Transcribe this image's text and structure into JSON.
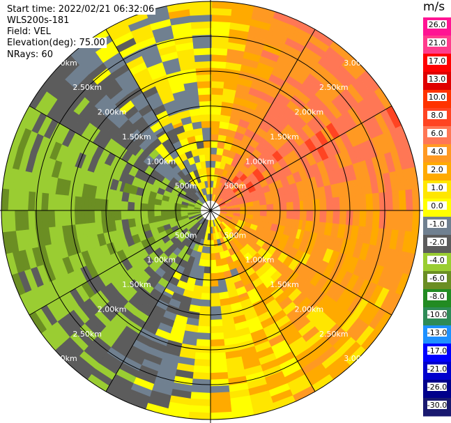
{
  "header": {
    "start_time": "Start time: 2022/02/21 06:32:06",
    "instrument": "WLS200s-181",
    "field": "Field: VEL",
    "elevation": "Elevation(deg): 75.00",
    "nrays": "NRays: 60"
  },
  "colorbar": {
    "unit": "m/s",
    "labels": [
      "26.0",
      "21.0",
      "17.0",
      "13.0",
      "10.0",
      "8.0",
      "6.0",
      "4.0",
      "2.0",
      "1.0",
      "0.0",
      "-1.0",
      "-2.0",
      "-4.0",
      "-6.0",
      "-8.0",
      "-10.0",
      "-13.0",
      "-17.0",
      "-21.0",
      "-26.0",
      "-30.0"
    ],
    "colors": [
      "#ff1493",
      "#ff3c8c",
      "#ff0000",
      "#e00000",
      "#ff3300",
      "#ff4422",
      "#ff7755",
      "#ff9922",
      "#ffaa00",
      "#ffe600",
      "#ffff00",
      "#708090",
      "#5c5c5c",
      "#9acd32",
      "#6b8e23",
      "#228b22",
      "#2e8b57",
      "#1e90ff",
      "#0000ff",
      "#0000cd",
      "#00008b",
      "#191970"
    ]
  },
  "chart_data": {
    "type": "heatmap",
    "projection": "polar-ppi",
    "field": "VEL",
    "units": "m/s",
    "nrays": 60,
    "max_range_km": 3.0,
    "range_rings_km": [
      0.5,
      1.0,
      1.5,
      2.0,
      2.5,
      3.0
    ],
    "ring_labels": [
      "500m",
      "1.00km",
      "1.50km",
      "2.00km",
      "2.50km",
      "3.00km"
    ],
    "sector_means_ms": [
      {
        "azimuth_deg": 0,
        "value": 0.0
      },
      {
        "azimuth_deg": 30,
        "value": 4.0
      },
      {
        "azimuth_deg": 60,
        "value": 5.0
      },
      {
        "azimuth_deg": 90,
        "value": 3.0
      },
      {
        "azimuth_deg": 120,
        "value": 2.0
      },
      {
        "azimuth_deg": 150,
        "value": 1.0
      },
      {
        "azimuth_deg": 180,
        "value": 0.0
      },
      {
        "azimuth_deg": 210,
        "value": -3.0
      },
      {
        "azimuth_deg": 240,
        "value": -5.0
      },
      {
        "azimuth_deg": 270,
        "value": -6.0
      },
      {
        "azimuth_deg": 300,
        "value": -4.0
      },
      {
        "azimuth_deg": 330,
        "value": -1.0
      }
    ],
    "vmin": -30.0,
    "vmax": 26.0,
    "grid": true
  }
}
